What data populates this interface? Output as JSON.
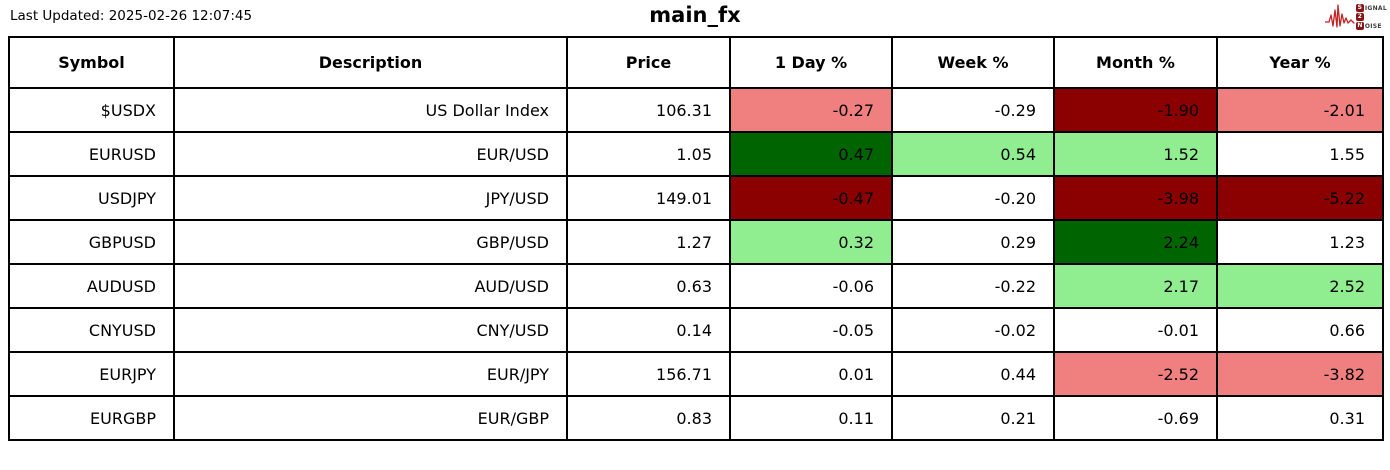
{
  "header": {
    "last_updated": "Last Updated: 2025-02-26 12:07:45",
    "title": "main_fx"
  },
  "logo": {
    "line1_initial": "S",
    "line1_rest": "IGNAL",
    "line2_initial": "2",
    "line2_rest": "",
    "line3_initial": "N",
    "line3_rest": "OISE",
    "waveform_color": "#c42222",
    "badge_color": "#8b1414",
    "text_color": "#3d3d3d"
  },
  "colors": {
    "strong_positive": "#006400",
    "positive": "#90ee90",
    "neutral": "#ffffff",
    "negative": "#f08080",
    "strong_negative": "#8b0000"
  },
  "table": {
    "headers": [
      "Symbol",
      "Description",
      "Price",
      "1 Day %",
      "Week %",
      "Month %",
      "Year %"
    ],
    "rows": [
      {
        "symbol": "$USDX",
        "description": "US Dollar Index",
        "price": "106.31",
        "changes": [
          {
            "value": "-0.27",
            "tone": "negative"
          },
          {
            "value": "-0.29",
            "tone": "neutral"
          },
          {
            "value": "-1.90",
            "tone": "strong_negative"
          },
          {
            "value": "-2.01",
            "tone": "negative"
          }
        ]
      },
      {
        "symbol": "EURUSD",
        "description": "EUR/USD",
        "price": "1.05",
        "changes": [
          {
            "value": "0.47",
            "tone": "strong_positive"
          },
          {
            "value": "0.54",
            "tone": "positive"
          },
          {
            "value": "1.52",
            "tone": "positive"
          },
          {
            "value": "1.55",
            "tone": "neutral"
          }
        ]
      },
      {
        "symbol": "USDJPY",
        "description": "JPY/USD",
        "price": "149.01",
        "changes": [
          {
            "value": "-0.47",
            "tone": "strong_negative"
          },
          {
            "value": "-0.20",
            "tone": "neutral"
          },
          {
            "value": "-3.98",
            "tone": "strong_negative"
          },
          {
            "value": "-5.22",
            "tone": "strong_negative"
          }
        ]
      },
      {
        "symbol": "GBPUSD",
        "description": "GBP/USD",
        "price": "1.27",
        "changes": [
          {
            "value": "0.32",
            "tone": "positive"
          },
          {
            "value": "0.29",
            "tone": "neutral"
          },
          {
            "value": "2.24",
            "tone": "strong_positive"
          },
          {
            "value": "1.23",
            "tone": "neutral"
          }
        ]
      },
      {
        "symbol": "AUDUSD",
        "description": "AUD/USD",
        "price": "0.63",
        "changes": [
          {
            "value": "-0.06",
            "tone": "neutral"
          },
          {
            "value": "-0.22",
            "tone": "neutral"
          },
          {
            "value": "2.17",
            "tone": "positive"
          },
          {
            "value": "2.52",
            "tone": "positive"
          }
        ]
      },
      {
        "symbol": "CNYUSD",
        "description": "CNY/USD",
        "price": "0.14",
        "changes": [
          {
            "value": "-0.05",
            "tone": "neutral"
          },
          {
            "value": "-0.02",
            "tone": "neutral"
          },
          {
            "value": "-0.01",
            "tone": "neutral"
          },
          {
            "value": "0.66",
            "tone": "neutral"
          }
        ]
      },
      {
        "symbol": "EURJPY",
        "description": "EUR/JPY",
        "price": "156.71",
        "changes": [
          {
            "value": "0.01",
            "tone": "neutral"
          },
          {
            "value": "0.44",
            "tone": "neutral"
          },
          {
            "value": "-2.52",
            "tone": "negative"
          },
          {
            "value": "-3.82",
            "tone": "negative"
          }
        ]
      },
      {
        "symbol": "EURGBP",
        "description": "EUR/GBP",
        "price": "0.83",
        "changes": [
          {
            "value": "0.11",
            "tone": "neutral"
          },
          {
            "value": "0.21",
            "tone": "neutral"
          },
          {
            "value": "-0.69",
            "tone": "neutral"
          },
          {
            "value": "0.31",
            "tone": "neutral"
          }
        ]
      }
    ]
  },
  "chart_data": {
    "type": "table",
    "title": "main_fx",
    "last_updated": "2025-02-26 12:07:45",
    "columns": [
      "Symbol",
      "Description",
      "Price",
      "1 Day %",
      "Week %",
      "Month %",
      "Year %"
    ],
    "rows": [
      [
        "$USDX",
        "US Dollar Index",
        106.31,
        -0.27,
        -0.29,
        -1.9,
        -2.01
      ],
      [
        "EURUSD",
        "EUR/USD",
        1.05,
        0.47,
        0.54,
        1.52,
        1.55
      ],
      [
        "USDJPY",
        "JPY/USD",
        149.01,
        -0.47,
        -0.2,
        -3.98,
        -5.22
      ],
      [
        "GBPUSD",
        "GBP/USD",
        1.27,
        0.32,
        0.29,
        2.24,
        1.23
      ],
      [
        "AUDUSD",
        "AUD/USD",
        0.63,
        -0.06,
        -0.22,
        2.17,
        2.52
      ],
      [
        "CNYUSD",
        "CNY/USD",
        0.14,
        -0.05,
        -0.02,
        -0.01,
        0.66
      ],
      [
        "EURJPY",
        "EUR/JPY",
        156.71,
        0.01,
        0.44,
        -2.52,
        -3.82
      ],
      [
        "EURGBP",
        "EUR/GBP",
        0.83,
        0.11,
        0.21,
        -0.69,
        0.31
      ]
    ],
    "legend_note": "cell shading: dark green >= ~2 strong gain, light green gain, white flat, light red loss, dark red strong loss"
  }
}
